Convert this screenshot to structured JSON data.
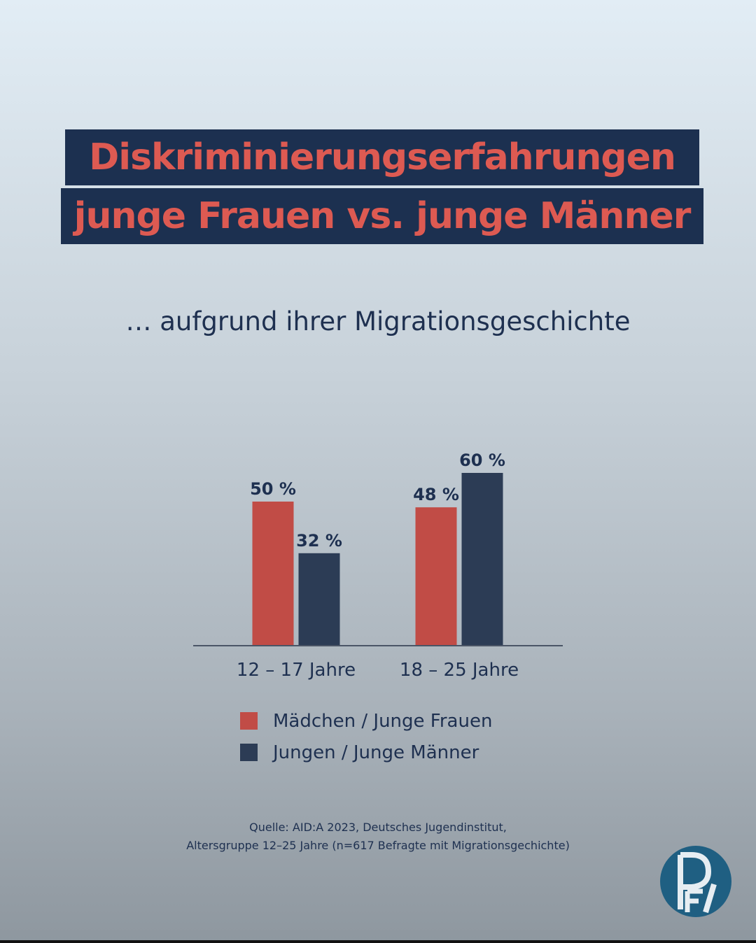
{
  "title": {
    "line1": "Diskriminierungserfahrungen",
    "line2": "junge Frauen vs. junge Männer"
  },
  "subtitle": "… aufgrund ihrer Migrationsgeschichte",
  "colors": {
    "title_bg": "#1c3050",
    "title_text": "#dd5a52",
    "series_female": "#c14c46",
    "series_male": "#2c3c55",
    "logo": "#1f5f82"
  },
  "chart_data": {
    "type": "bar",
    "categories": [
      "12 – 17 Jahre",
      "18 – 25 Jahre"
    ],
    "series": [
      {
        "name": "Mädchen / Junge Frauen",
        "values": [
          50,
          48
        ],
        "labels": [
          "50 %",
          "48 %"
        ]
      },
      {
        "name": "Jungen / Junge Männer",
        "values": [
          32,
          60
        ],
        "labels": [
          "32 %",
          "60 %"
        ]
      }
    ],
    "title": "Diskriminierungserfahrungen junge Frauen vs. junge Männer",
    "subtitle": "… aufgrund ihrer Migrationsgeschichte",
    "xlabel": "",
    "ylabel": "",
    "ylim": [
      0,
      100
    ],
    "grid": false,
    "legend": "bottom"
  },
  "legend": {
    "items": [
      {
        "label": "Mädchen / Junge Frauen",
        "color": "#c14c46"
      },
      {
        "label": "Jungen / Junge Männer",
        "color": "#2c3c55"
      }
    ]
  },
  "source": {
    "line1": "Quelle:  AID:A 2023, Deutsches Jugendinstitut,",
    "line2": "Altersgruppe 12–25 Jahre (n=617 Befragte mit Migrationsgechichte)"
  },
  "logo": {
    "icon": "dfi-logo-icon",
    "text": "DFI"
  }
}
